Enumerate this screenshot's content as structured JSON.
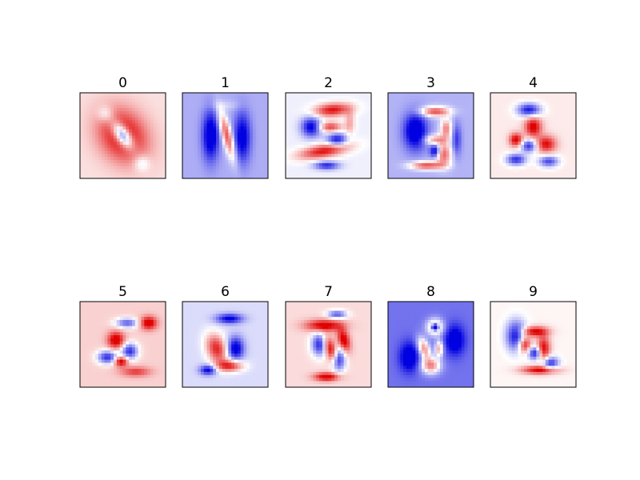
{
  "chart_data": {
    "type": "heatmap",
    "colormap": "seismic",
    "colors": {
      "negative": "#0000e0",
      "neutral": "#ffffff",
      "positive": "#e00000"
    },
    "axes_visible": false,
    "grid": false,
    "panels": [
      {
        "title": "0",
        "background": 0.12,
        "blobs": [
          [
            0.5,
            0.5,
            0.27,
            0.34,
            1.0,
            -35
          ],
          [
            0.5,
            0.5,
            0.09,
            0.18,
            -1.4,
            -35
          ],
          [
            0.3,
            0.25,
            0.1,
            0.1,
            -0.35,
            0
          ],
          [
            0.72,
            0.82,
            0.1,
            0.1,
            -0.35,
            0
          ]
        ]
      },
      {
        "title": "1",
        "background": -0.32,
        "blobs": [
          [
            0.52,
            0.5,
            0.06,
            0.3,
            1.0,
            -15
          ],
          [
            0.33,
            0.5,
            0.1,
            0.3,
            -0.9,
            0
          ],
          [
            0.7,
            0.52,
            0.1,
            0.3,
            -0.8,
            0
          ],
          [
            0.5,
            0.15,
            0.2,
            0.06,
            0.15,
            0
          ]
        ]
      },
      {
        "title": "2",
        "background": -0.06,
        "blobs": [
          [
            0.55,
            0.2,
            0.22,
            0.08,
            1.0,
            -5
          ],
          [
            0.3,
            0.4,
            0.12,
            0.12,
            -1.0,
            0
          ],
          [
            0.52,
            0.4,
            0.14,
            0.06,
            0.8,
            0
          ],
          [
            0.45,
            0.68,
            0.3,
            0.08,
            1.0,
            -10
          ],
          [
            0.6,
            0.55,
            0.12,
            0.08,
            -0.9,
            0
          ],
          [
            0.48,
            0.85,
            0.15,
            0.05,
            -0.8,
            0
          ],
          [
            0.75,
            0.35,
            0.06,
            0.15,
            0.4,
            0
          ]
        ]
      },
      {
        "title": "3",
        "background": -0.3,
        "blobs": [
          [
            0.55,
            0.22,
            0.18,
            0.06,
            1.0,
            0
          ],
          [
            0.68,
            0.42,
            0.07,
            0.12,
            0.8,
            0
          ],
          [
            0.55,
            0.55,
            0.14,
            0.06,
            0.7,
            0
          ],
          [
            0.65,
            0.72,
            0.1,
            0.14,
            0.9,
            0
          ],
          [
            0.45,
            0.85,
            0.2,
            0.05,
            1.0,
            0
          ],
          [
            0.32,
            0.45,
            0.14,
            0.22,
            -1.0,
            0
          ],
          [
            0.55,
            0.68,
            0.06,
            0.08,
            -0.9,
            0
          ],
          [
            0.8,
            0.55,
            0.06,
            0.2,
            -0.5,
            0
          ]
        ]
      },
      {
        "title": "4",
        "background": 0.08,
        "blobs": [
          [
            0.45,
            0.2,
            0.14,
            0.08,
            -1.0,
            0
          ],
          [
            0.5,
            0.4,
            0.1,
            0.12,
            1.0,
            0
          ],
          [
            0.3,
            0.55,
            0.08,
            0.08,
            1.0,
            0
          ],
          [
            0.65,
            0.6,
            0.12,
            0.1,
            0.9,
            0
          ],
          [
            0.45,
            0.62,
            0.1,
            0.08,
            -0.9,
            0
          ],
          [
            0.3,
            0.78,
            0.12,
            0.07,
            -0.9,
            0
          ],
          [
            0.68,
            0.8,
            0.12,
            0.07,
            -0.8,
            0
          ]
        ]
      },
      {
        "title": "5",
        "background": 0.18,
        "blobs": [
          [
            0.8,
            0.25,
            0.1,
            0.08,
            1.0,
            0
          ],
          [
            0.55,
            0.25,
            0.14,
            0.06,
            -0.8,
            0
          ],
          [
            0.42,
            0.45,
            0.1,
            0.1,
            1.0,
            0
          ],
          [
            0.32,
            0.65,
            0.12,
            0.08,
            -1.0,
            0
          ],
          [
            0.58,
            0.58,
            0.1,
            0.1,
            -1.0,
            0
          ],
          [
            0.48,
            0.7,
            0.08,
            0.06,
            1.0,
            0
          ],
          [
            0.65,
            0.82,
            0.18,
            0.06,
            0.6,
            0
          ]
        ]
      },
      {
        "title": "6",
        "background": -0.14,
        "blobs": [
          [
            0.4,
            0.55,
            0.12,
            0.18,
            1.0,
            -20
          ],
          [
            0.62,
            0.55,
            0.1,
            0.14,
            -1.0,
            0
          ],
          [
            0.55,
            0.75,
            0.16,
            0.07,
            1.0,
            0
          ],
          [
            0.55,
            0.2,
            0.16,
            0.06,
            -0.9,
            0
          ],
          [
            0.3,
            0.8,
            0.1,
            0.06,
            -0.9,
            0
          ]
        ]
      },
      {
        "title": "7",
        "background": 0.14,
        "blobs": [
          [
            0.45,
            0.28,
            0.22,
            0.07,
            1.0,
            0
          ],
          [
            0.68,
            0.45,
            0.07,
            0.14,
            1.0,
            -15
          ],
          [
            0.52,
            0.55,
            0.07,
            0.16,
            1.0,
            -20
          ],
          [
            0.48,
            0.88,
            0.15,
            0.05,
            1.0,
            0
          ],
          [
            0.4,
            0.5,
            0.1,
            0.14,
            -1.0,
            0
          ],
          [
            0.62,
            0.68,
            0.08,
            0.14,
            -1.0,
            0
          ],
          [
            0.6,
            0.15,
            0.12,
            0.05,
            -0.8,
            0
          ]
        ]
      },
      {
        "title": "8",
        "background": -0.55,
        "blobs": [
          [
            0.55,
            0.3,
            0.1,
            0.1,
            1.0,
            0
          ],
          [
            0.55,
            0.3,
            0.04,
            0.04,
            -2.0,
            0
          ],
          [
            0.42,
            0.55,
            0.07,
            0.14,
            1.0,
            -20
          ],
          [
            0.5,
            0.75,
            0.12,
            0.1,
            1.0,
            0
          ],
          [
            0.6,
            0.55,
            0.05,
            0.1,
            0.9,
            0
          ],
          [
            0.25,
            0.65,
            0.12,
            0.18,
            -0.7,
            0
          ],
          [
            0.78,
            0.45,
            0.12,
            0.18,
            -0.7,
            0
          ]
        ]
      },
      {
        "title": "9",
        "background": 0.04,
        "blobs": [
          [
            0.52,
            0.35,
            0.16,
            0.06,
            1.0,
            0
          ],
          [
            0.4,
            0.5,
            0.08,
            0.1,
            1.0,
            0
          ],
          [
            0.62,
            0.55,
            0.08,
            0.15,
            1.0,
            0
          ],
          [
            0.52,
            0.6,
            0.08,
            0.08,
            -1.0,
            0
          ],
          [
            0.3,
            0.4,
            0.12,
            0.18,
            -1.0,
            0
          ],
          [
            0.58,
            0.8,
            0.22,
            0.05,
            1.0,
            0
          ],
          [
            0.7,
            0.72,
            0.1,
            0.08,
            -0.9,
            0
          ]
        ]
      }
    ]
  }
}
